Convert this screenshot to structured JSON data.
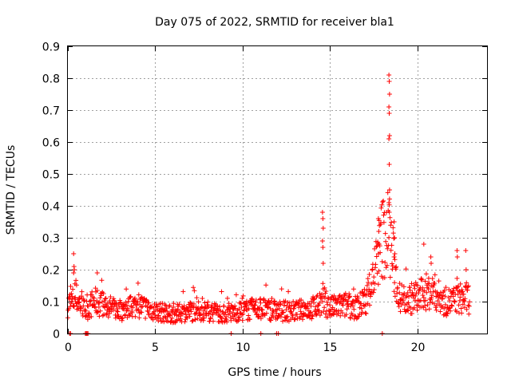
{
  "chart_data": {
    "type": "scatter",
    "title": "Day 075 of 2022, SRMTID for receiver bla1",
    "xlabel": "GPS time / hours",
    "ylabel": "SRMTID / TECUs",
    "xlim": [
      0,
      24
    ],
    "ylim": [
      0,
      0.9
    ],
    "xticks": [
      0,
      5,
      10,
      15,
      20
    ],
    "yticks": [
      0,
      0.1,
      0.2,
      0.3,
      0.4,
      0.5,
      0.6,
      0.7,
      0.8,
      0.9
    ],
    "grid": true,
    "marker": "+",
    "color": "#ff0000",
    "x_step_hours": 0.02,
    "base_level": [
      [
        0.0,
        0.09
      ],
      [
        0.5,
        0.11
      ],
      [
        1.0,
        0.07
      ],
      [
        1.5,
        0.1
      ],
      [
        2.0,
        0.09
      ],
      [
        3.0,
        0.07
      ],
      [
        4.0,
        0.09
      ],
      [
        5.0,
        0.07
      ],
      [
        6.0,
        0.06
      ],
      [
        7.0,
        0.07
      ],
      [
        8.0,
        0.07
      ],
      [
        9.0,
        0.06
      ],
      [
        10.0,
        0.07
      ],
      [
        11.0,
        0.08
      ],
      [
        12.0,
        0.07
      ],
      [
        13.0,
        0.07
      ],
      [
        14.0,
        0.08
      ],
      [
        14.7,
        0.1
      ],
      [
        15.0,
        0.08
      ],
      [
        16.0,
        0.09
      ],
      [
        16.5,
        0.08
      ],
      [
        17.0,
        0.1
      ],
      [
        17.5,
        0.18
      ],
      [
        18.0,
        0.3
      ],
      [
        18.4,
        0.32
      ],
      [
        18.7,
        0.2
      ],
      [
        19.0,
        0.11
      ],
      [
        20.0,
        0.11
      ],
      [
        20.5,
        0.13
      ],
      [
        21.0,
        0.13
      ],
      [
        21.5,
        0.1
      ],
      [
        22.0,
        0.1
      ],
      [
        22.5,
        0.11
      ],
      [
        23.0,
        0.11
      ]
    ],
    "spikes": [
      {
        "x": 0.35,
        "values": [
          0.25,
          0.21,
          0.2,
          0.19
        ]
      },
      {
        "x": 1.7,
        "values": [
          0.19
        ]
      },
      {
        "x": 14.6,
        "values": [
          0.38,
          0.36,
          0.33,
          0.29,
          0.27,
          0.22
        ]
      },
      {
        "x": 17.8,
        "values": [
          0.36,
          0.32,
          0.28,
          0.25
        ]
      },
      {
        "x": 18.4,
        "values": [
          0.81,
          0.79,
          0.75,
          0.71,
          0.69,
          0.62,
          0.61,
          0.53,
          0.45,
          0.41,
          0.38
        ]
      },
      {
        "x": 18.7,
        "values": [
          0.35,
          0.3,
          0.25,
          0.24
        ]
      },
      {
        "x": 20.4,
        "values": [
          0.28
        ]
      },
      {
        "x": 20.8,
        "values": [
          0.24,
          0.22
        ]
      },
      {
        "x": 22.3,
        "values": [
          0.26,
          0.24
        ]
      },
      {
        "x": 22.8,
        "values": [
          0.26,
          0.2
        ]
      }
    ],
    "zero_points": [
      0.1,
      0.15,
      1.0,
      1.05,
      1.1,
      1.15,
      9.35,
      11.05,
      11.95,
      12.05,
      18.0
    ]
  }
}
